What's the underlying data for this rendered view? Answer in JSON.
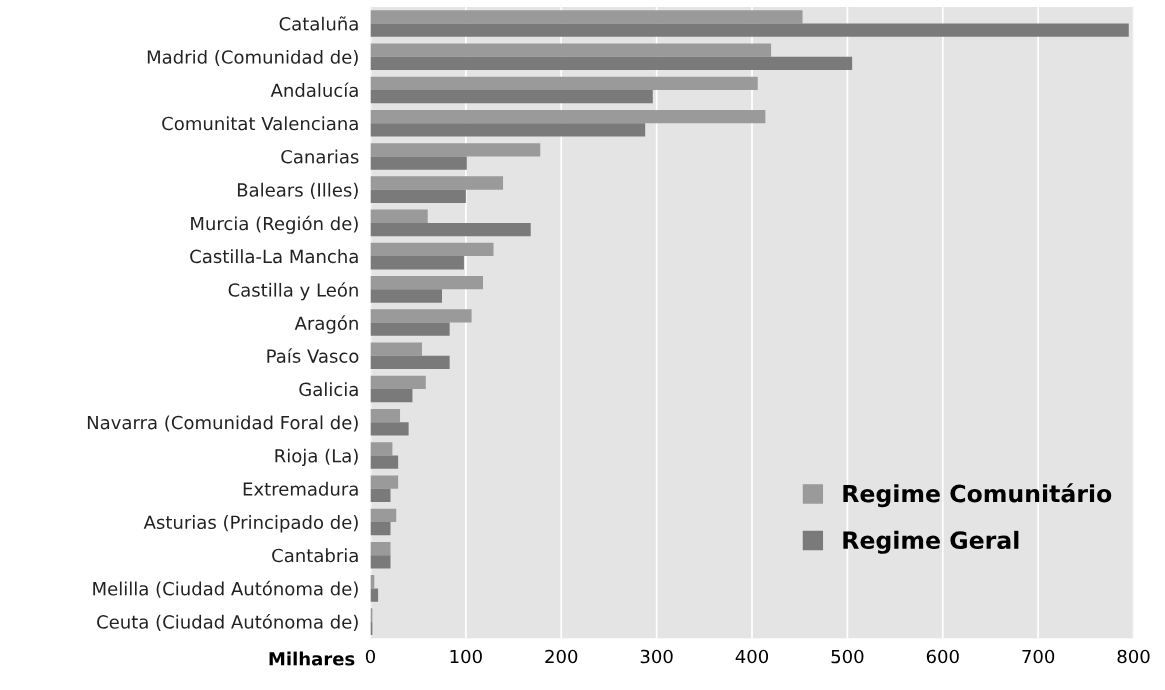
{
  "chart_data": {
    "type": "bar",
    "orientation": "horizontal",
    "xlabel": "Milhares",
    "categories": [
      "Cataluña",
      "Madrid (Comunidad de)",
      "Andalucía",
      "Comunitat Valenciana",
      "Canarias",
      "Balears (Illes)",
      "Murcia (Región de)",
      "Castilla-La Mancha",
      "Castilla y León",
      "Aragón",
      "País Vasco",
      "Galicia",
      "Navarra (Comunidad Foral de)",
      "Rioja (La)",
      "Extremadura",
      "Asturias (Principado de)",
      "Cantabria",
      "Melilla (Ciudad Autónoma de)",
      "Ceuta (Ciudad Autónoma de)"
    ],
    "series": [
      {
        "name": "Regime Comunitário",
        "color": "#9a9a9a",
        "values": [
          453,
          420,
          406,
          414,
          178,
          139,
          60,
          129,
          118,
          106,
          54,
          58,
          31,
          23,
          29,
          27,
          21,
          4,
          2
        ]
      },
      {
        "name": "Regime Geral",
        "color": "#7a7a7a",
        "values": [
          795,
          505,
          296,
          288,
          101,
          100,
          168,
          98,
          75,
          83,
          83,
          44,
          40,
          29,
          21,
          21,
          21,
          8,
          2
        ]
      }
    ],
    "xlim": [
      0,
      800
    ],
    "xticks": [
      0,
      100,
      200,
      300,
      400,
      500,
      600,
      700,
      800
    ],
    "grid": "x",
    "legend": "bottom right"
  }
}
